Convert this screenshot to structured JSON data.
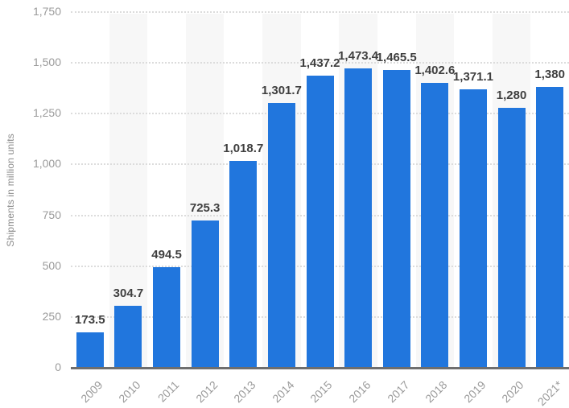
{
  "chart_data": {
    "type": "bar",
    "categories": [
      "2009",
      "2010",
      "2011",
      "2012",
      "2013",
      "2014",
      "2015",
      "2016",
      "2017",
      "2018",
      "2019",
      "2020",
      "2021*"
    ],
    "values": [
      173.5,
      304.7,
      494.5,
      725.3,
      1018.7,
      1301.7,
      1437.2,
      1473.4,
      1465.5,
      1402.6,
      1371.1,
      1280,
      1380
    ],
    "value_labels": [
      "173.5",
      "304.7",
      "494.5",
      "725.3",
      "1,018.7",
      "1,301.7",
      "1,437.2",
      "1,473.4",
      "1,465.5",
      "1,402.6",
      "1,371.1",
      "1,280",
      "1,380"
    ],
    "title": "",
    "xlabel": "",
    "ylabel": "Shipments in million units",
    "ylim": [
      0,
      1750
    ],
    "ytick_step": 250,
    "ytick_labels": [
      "0",
      "250",
      "500",
      "750",
      "1,000",
      "1,250",
      "1,500",
      "1,750"
    ],
    "grid": true,
    "gridline_style": "dotted",
    "legend": "none",
    "column_stripes": "alternate",
    "colors": {
      "bar": "#2176dd",
      "stripe": "#f7f7f7",
      "gridline": "#dcdcdc",
      "axis_line": "#6e6e6e",
      "tick_text": "#9b9b9b",
      "value_label_text": "#3f3f3f",
      "y_title_text": "#8a8a8a",
      "background": "#ffffff"
    }
  }
}
